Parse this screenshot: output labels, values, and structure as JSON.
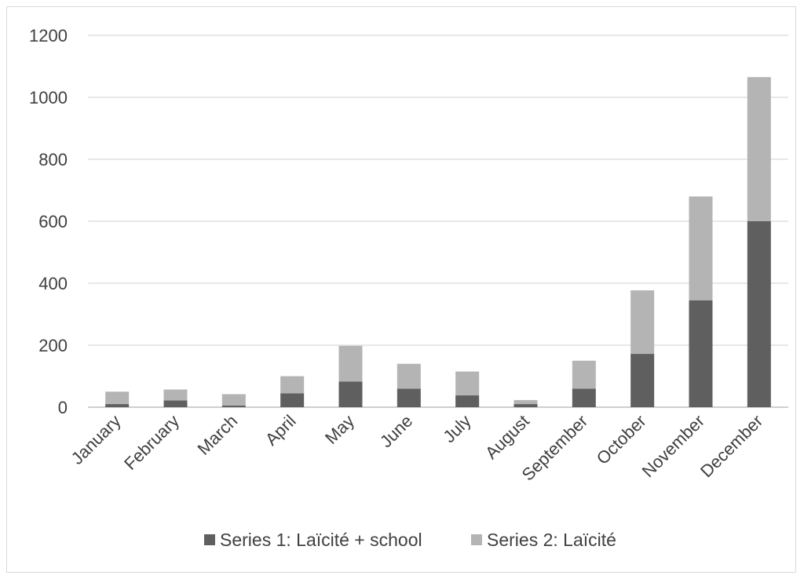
{
  "chart_data": {
    "type": "bar",
    "stacked": true,
    "categories": [
      "January",
      "February",
      "March",
      "April",
      "May",
      "June",
      "July",
      "August",
      "September",
      "October",
      "November",
      "December"
    ],
    "series": [
      {
        "name": "Series 1: Laïcité + school",
        "color": "#5f5f5f",
        "values": [
          10,
          22,
          5,
          45,
          83,
          60,
          38,
          10,
          60,
          172,
          345,
          600
        ]
      },
      {
        "name": "Series 2: Laïcité",
        "color": "#b4b4b4",
        "values": [
          40,
          35,
          37,
          55,
          115,
          80,
          77,
          13,
          90,
          205,
          335,
          465
        ]
      }
    ],
    "yticks": [
      "0",
      "200",
      "400",
      "600",
      "800",
      "1000",
      "1200"
    ],
    "ylim": [
      0,
      1200
    ],
    "grid": true,
    "legend_position": "bottom"
  }
}
